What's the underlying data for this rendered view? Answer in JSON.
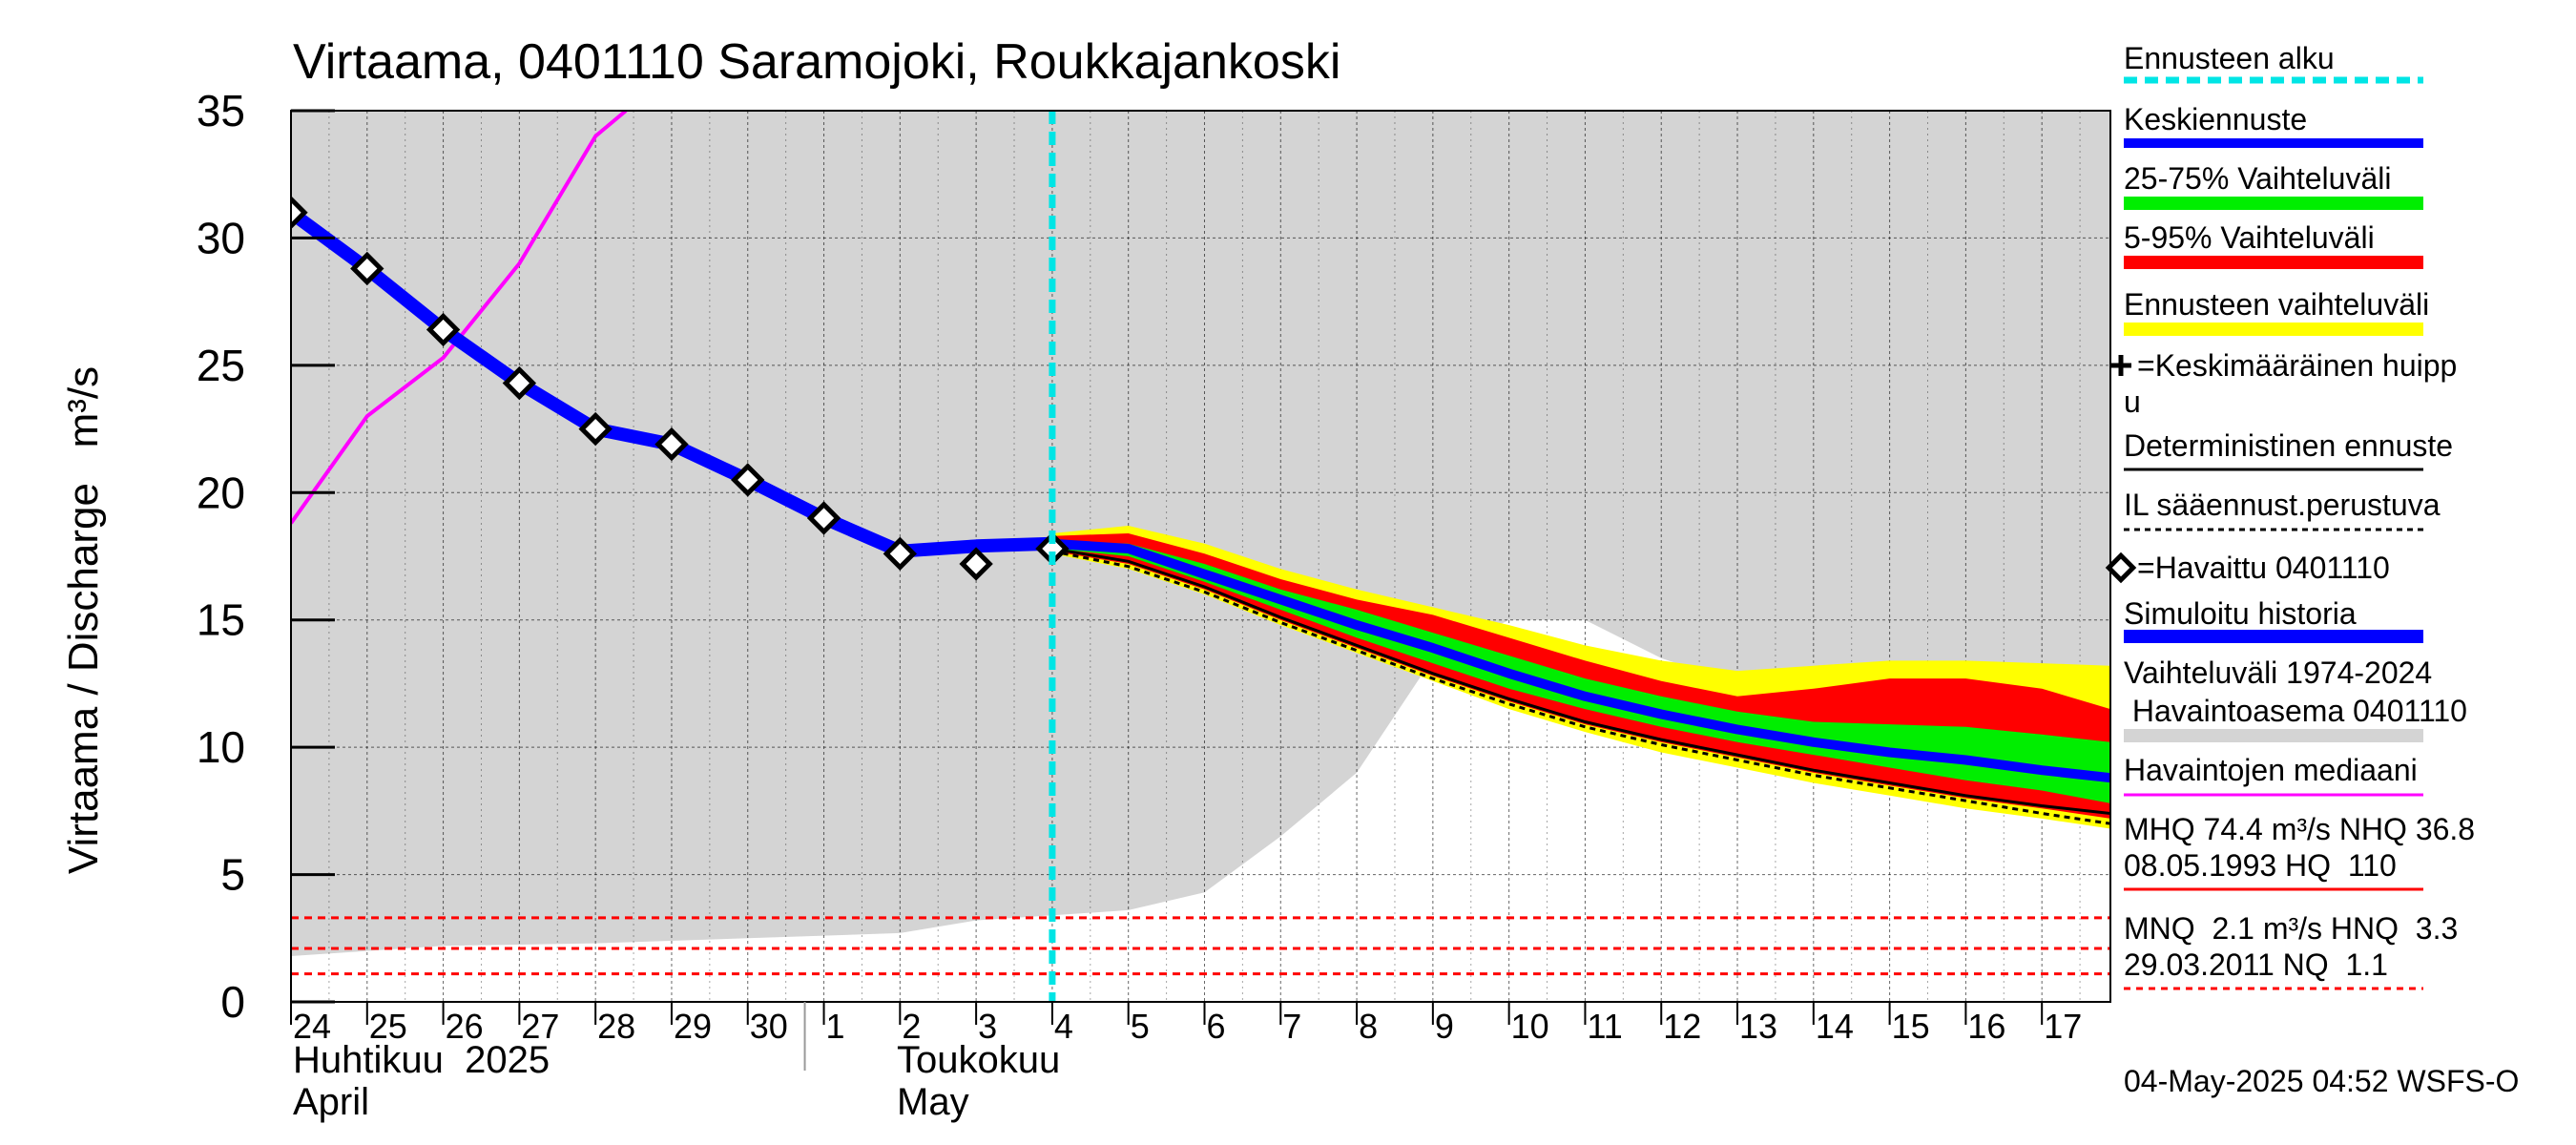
{
  "chart_data": {
    "type": "line",
    "title": "Virtaama, 0401110 Saramojoki, Roukkajankoski",
    "ylabel": "Virtaama / Discharge   m³/s",
    "ylim": [
      0,
      35
    ],
    "yticks": [
      0,
      5,
      10,
      15,
      20,
      25,
      30,
      35
    ],
    "xlim": [
      24.0,
      47.9
    ],
    "day_ticks": [
      {
        "x": 24,
        "label": "24"
      },
      {
        "x": 25,
        "label": "25"
      },
      {
        "x": 26,
        "label": "26"
      },
      {
        "x": 27,
        "label": "27"
      },
      {
        "x": 28,
        "label": "28"
      },
      {
        "x": 29,
        "label": "29"
      },
      {
        "x": 30,
        "label": "30"
      },
      {
        "x": 31,
        "label": "1"
      },
      {
        "x": 32,
        "label": "2"
      },
      {
        "x": 33,
        "label": "3"
      },
      {
        "x": 34,
        "label": "4"
      },
      {
        "x": 35,
        "label": "5"
      },
      {
        "x": 36,
        "label": "6"
      },
      {
        "x": 37,
        "label": "7"
      },
      {
        "x": 38,
        "label": "8"
      },
      {
        "x": 39,
        "label": "9"
      },
      {
        "x": 40,
        "label": "10"
      },
      {
        "x": 41,
        "label": "11"
      },
      {
        "x": 42,
        "label": "12"
      },
      {
        "x": 43,
        "label": "13"
      },
      {
        "x": 44,
        "label": "14"
      },
      {
        "x": 45,
        "label": "15"
      },
      {
        "x": 46,
        "label": "16"
      },
      {
        "x": 47,
        "label": "17"
      }
    ],
    "month_divider_x": 31,
    "month_labels": {
      "april_fi": "Huhtikuu  2025",
      "april_en": "April",
      "may_fi": "Toukokuu",
      "may_en": "May"
    },
    "forecast_start_x": 34.0,
    "history_range": {
      "name": "Vaihteluväli 1974-2024 Havaintoasema 0401110",
      "x": [
        24,
        26,
        28,
        30,
        31,
        32,
        33,
        34,
        35,
        36,
        37,
        38,
        39,
        40,
        41,
        42,
        43,
        44,
        45,
        46,
        47,
        47.9
      ],
      "low": [
        1.8,
        2.2,
        2.3,
        2.5,
        2.6,
        2.7,
        3.2,
        3.4,
        3.6,
        4.3,
        6.5,
        9.0,
        13.5,
        15.0,
        15.0,
        13.5,
        12.5,
        11.5,
        11.0,
        10.5,
        10.5,
        10.2
      ],
      "high": [
        35,
        35,
        35,
        35,
        35,
        35,
        35,
        35,
        35,
        35,
        35,
        35,
        35,
        35,
        35,
        35,
        35,
        35,
        35,
        35,
        35,
        35
      ]
    },
    "median_history": {
      "name": "Havaintojen mediaani",
      "x": [
        24,
        25,
        26,
        27,
        28,
        28.4
      ],
      "y": [
        18.8,
        23.0,
        25.3,
        29.0,
        34.0,
        35.0
      ]
    },
    "observed": {
      "name": "=Havaittu 0401110",
      "x": [
        24,
        25,
        26,
        27,
        28,
        29,
        30,
        31,
        32,
        33,
        34
      ],
      "y": [
        31.0,
        28.8,
        26.4,
        24.3,
        22.5,
        21.9,
        20.5,
        19.0,
        17.6,
        17.2,
        17.8
      ]
    },
    "simulated": {
      "name": "Simuloitu historia",
      "x": [
        24,
        25,
        26,
        27,
        28,
        29,
        30,
        31,
        32,
        33,
        34
      ],
      "y": [
        31.0,
        28.8,
        26.4,
        24.3,
        22.5,
        21.9,
        20.5,
        19.0,
        17.7,
        17.9,
        18.0
      ]
    },
    "forecast": {
      "x": [
        34,
        35,
        36,
        37,
        38,
        39,
        40,
        41,
        42,
        43,
        44,
        45,
        46,
        47,
        47.9
      ],
      "yellow_low": [
        17.6,
        17.0,
        16.0,
        14.8,
        13.7,
        12.6,
        11.5,
        10.6,
        9.8,
        9.2,
        8.6,
        8.1,
        7.6,
        7.2,
        6.8
      ],
      "yellow_high": [
        18.4,
        18.7,
        18.0,
        17.0,
        16.2,
        15.5,
        14.8,
        14.0,
        13.4,
        13.0,
        13.2,
        13.4,
        13.4,
        13.3,
        13.2
      ],
      "red_low": [
        17.7,
        17.2,
        16.2,
        15.0,
        13.9,
        12.8,
        11.8,
        10.9,
        10.2,
        9.6,
        9.0,
        8.5,
        8.0,
        7.6,
        7.2
      ],
      "red_high": [
        18.3,
        18.4,
        17.6,
        16.6,
        15.8,
        15.2,
        14.3,
        13.4,
        12.6,
        12.0,
        12.3,
        12.7,
        12.7,
        12.3,
        11.5
      ],
      "green_low": [
        17.8,
        17.5,
        16.5,
        15.4,
        14.3,
        13.3,
        12.3,
        11.5,
        10.8,
        10.2,
        9.7,
        9.2,
        8.7,
        8.3,
        7.8
      ],
      "green_high": [
        18.1,
        18.0,
        17.2,
        16.2,
        15.4,
        14.5,
        13.6,
        12.7,
        12.0,
        11.4,
        11.0,
        10.9,
        10.8,
        10.5,
        10.2
      ],
      "mean": [
        18.0,
        17.8,
        16.8,
        15.8,
        14.8,
        13.9,
        12.9,
        12.0,
        11.3,
        10.7,
        10.2,
        9.8,
        9.5,
        9.1,
        8.8
      ],
      "deterministic": [
        17.8,
        17.3,
        16.3,
        15.1,
        14.0,
        12.9,
        11.9,
        11.0,
        10.3,
        9.7,
        9.1,
        8.6,
        8.1,
        7.7,
        7.4
      ],
      "il_weather": [
        17.7,
        17.1,
        16.1,
        14.9,
        13.8,
        12.7,
        11.7,
        10.8,
        10.1,
        9.5,
        8.9,
        8.4,
        7.9,
        7.4,
        7.0
      ]
    },
    "reference_lines": [
      {
        "y": 3.3,
        "name": "HNQ"
      },
      {
        "y": 2.1,
        "name": "MNQ"
      },
      {
        "y": 1.1,
        "name": "NQ"
      }
    ],
    "colors": {
      "history_band": "#d4d4d4",
      "median": "#ff00ff",
      "observed_marker": "#000000",
      "simulated": "#0000ff",
      "mean_forecast": "#0000ff",
      "band_25_75": "#00ee00",
      "band_5_95": "#ff0000",
      "band_forecast": "#ffff00",
      "forecast_start": "#00e5e5",
      "reference": "#ff0000",
      "deterministic": "#000000"
    },
    "legend": {
      "forecast_start": "Ennusteen alku",
      "mean_forecast": "Keskiennuste",
      "band_25_75": "25-75% Vaihteluväli",
      "band_5_95": "5-95% Vaihteluväli",
      "band_forecast": "Ennusteen vaihteluväli",
      "mean_peak_line1": "=Keskimääräinen huipp",
      "mean_peak_line2": "u",
      "deterministic": "Deterministinen ennuste",
      "il_weather": "IL sääennust.perustuva",
      "observed": "=Havaittu 0401110",
      "simulated": "Simuloitu historia",
      "history_line1": "Vaihteluväli 1974-2024",
      "history_line2": " Havaintoasema 0401110",
      "median": "Havaintojen mediaani",
      "high_stats_line1": "MHQ 74.4 m³/s NHQ 36.8",
      "high_stats_line2": "08.05.1993 HQ  110",
      "low_stats_line1": "MNQ  2.1 m³/s HNQ  3.3",
      "low_stats_line2": "29.03.2011 NQ  1.1"
    },
    "footer": "04-May-2025 04:52 WSFS-O"
  }
}
